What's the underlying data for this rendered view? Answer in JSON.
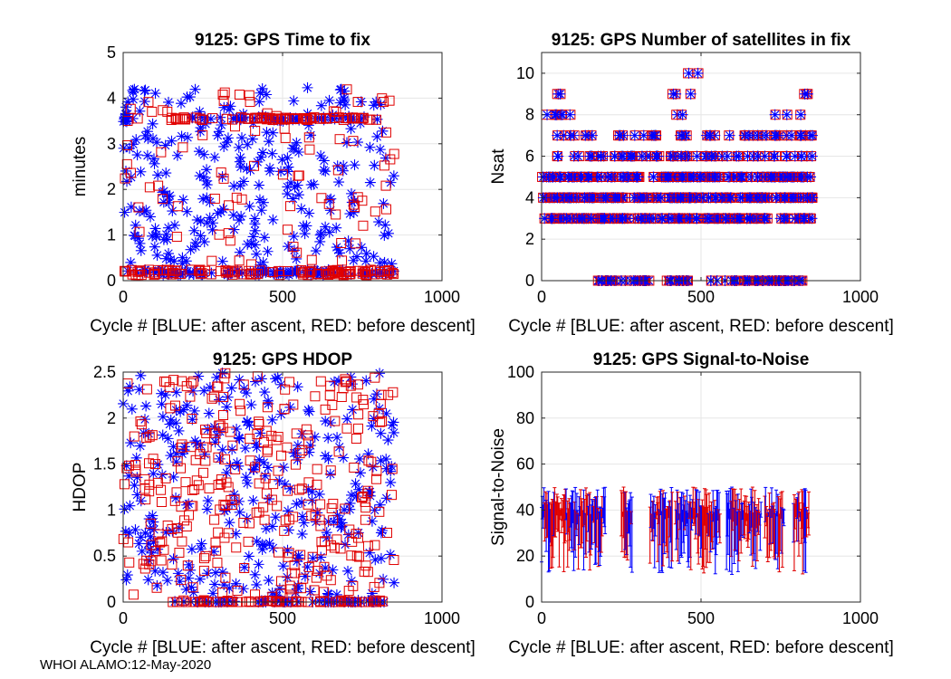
{
  "figure": {
    "footer": "WHOI ALAMO:12-May-2020",
    "colors": {
      "after_ascent": "#0000ff",
      "before_descent": "#e00000",
      "grid": "#e6e6e6",
      "axis": "#262626"
    }
  },
  "chart_data": [
    {
      "id": "time-to-fix",
      "type": "scatter",
      "title": "9125: GPS Time to fix",
      "xlabel": "Cycle #  [BLUE: after ascent, RED: before descent]",
      "ylabel": "minutes",
      "xlim": [
        0,
        1000
      ],
      "ylim": [
        0,
        5
      ],
      "xticks": [
        0,
        500,
        1000
      ],
      "yticks": [
        0,
        1,
        2,
        3,
        4,
        5
      ],
      "x_range": [
        0,
        850
      ],
      "grid": true,
      "series": [
        {
          "name": "after ascent",
          "color": "#0000ff",
          "marker": "star",
          "bands": [
            {
              "y": 0.18,
              "spread": 0.06,
              "n": 110
            },
            {
              "y": 3.55,
              "spread": 0.04,
              "n": 45,
              "xmin": 150,
              "xmax": 800
            },
            {
              "y": 3.6,
              "spread": 0.12,
              "n": 10,
              "xmin": 0,
              "xmax": 15
            }
          ],
          "scatter": {
            "n": 280,
            "ymin": 0.3,
            "ymax": 4.25
          }
        },
        {
          "name": "before descent",
          "color": "#e00000",
          "marker": "square",
          "bands": [
            {
              "y": 0.18,
              "spread": 0.06,
              "n": 110
            },
            {
              "y": 3.55,
              "spread": 0.03,
              "n": 70,
              "xmin": 150,
              "xmax": 800
            }
          ],
          "scatter": {
            "n": 85,
            "ymin": 0.3,
            "ymax": 4.2
          }
        }
      ]
    },
    {
      "id": "num-satellites",
      "type": "scatter",
      "title": "9125: GPS Number of satellites in fix",
      "xlabel": "Cycle #  [BLUE: after ascent, RED: before descent]",
      "ylabel": "Nsat",
      "xlim": [
        0,
        1000
      ],
      "ylim": [
        0,
        11
      ],
      "xticks": [
        0,
        500,
        1000
      ],
      "yticks": [
        0,
        2,
        4,
        6,
        8,
        10
      ],
      "x_range": [
        0,
        850
      ],
      "grid": true,
      "levels": [
        {
          "nsat": 0,
          "segments": [
            [
              150,
              350
            ],
            [
              380,
              460
            ],
            [
              520,
              820
            ]
          ],
          "n": 90
        },
        {
          "nsat": 3,
          "segments": [
            [
              0,
              850
            ]
          ],
          "n": 120
        },
        {
          "nsat": 4,
          "segments": [
            [
              0,
              850
            ]
          ],
          "n": 150
        },
        {
          "nsat": 5,
          "segments": [
            [
              0,
              850
            ]
          ],
          "n": 140
        },
        {
          "nsat": 6,
          "segments": [
            [
              0,
              850
            ]
          ],
          "n": 60
        },
        {
          "nsat": 7,
          "segments": [
            [
              30,
              850
            ]
          ],
          "n": 45
        },
        {
          "nsat": 8,
          "segments": [
            [
              0,
              140
            ],
            [
              330,
              850
            ]
          ],
          "n": 12
        },
        {
          "nsat": 9,
          "segments": [
            [
              40,
              120
            ],
            [
              410,
              500
            ],
            [
              800,
              850
            ]
          ],
          "n": 8
        },
        {
          "nsat": 10,
          "segments": [
            [
              380,
              520
            ]
          ],
          "n": 2
        }
      ],
      "series": [
        {
          "name": "after ascent",
          "color": "#0000ff",
          "marker": "star"
        },
        {
          "name": "before descent",
          "color": "#e00000",
          "marker": "square"
        }
      ]
    },
    {
      "id": "hdop",
      "type": "scatter",
      "title": "9125: GPS HDOP",
      "xlabel": "Cycle #  [BLUE: after ascent, RED: before descent]",
      "ylabel": "HDOP",
      "xlim": [
        0,
        1000
      ],
      "ylim": [
        0,
        2.5
      ],
      "xticks": [
        0,
        500,
        1000
      ],
      "yticks": [
        0,
        0.5,
        1,
        1.5,
        2,
        2.5
      ],
      "x_range": [
        0,
        850
      ],
      "grid": true,
      "series": [
        {
          "name": "after ascent",
          "color": "#0000ff",
          "marker": "star",
          "bands": [
            {
              "y": 0.0,
              "spread": 0.02,
              "n": 60,
              "xmin": 150,
              "xmax": 820
            }
          ],
          "scatter": {
            "n": 320,
            "ymin": 0.05,
            "ymax": 2.5
          }
        },
        {
          "name": "before descent",
          "color": "#e00000",
          "marker": "square",
          "bands": [
            {
              "y": 0.0,
              "spread": 0.02,
              "n": 70,
              "xmin": 150,
              "xmax": 820
            }
          ],
          "scatter": {
            "n": 300,
            "ymin": 0.05,
            "ymax": 2.5
          }
        }
      ]
    },
    {
      "id": "signal-to-noise",
      "type": "errorbar",
      "title": "9125: GPS Signal-to-Noise",
      "xlabel": "Cycle #  [BLUE: after ascent, RED: before descent]",
      "ylabel": "Signal-to-Noise",
      "xlim": [
        0,
        1000
      ],
      "ylim": [
        0,
        100
      ],
      "xticks": [
        0,
        500,
        1000
      ],
      "yticks": [
        0,
        20,
        40,
        60,
        80,
        100
      ],
      "grid": true,
      "segments": [
        [
          0,
          200
        ],
        [
          250,
          285
        ],
        [
          340,
          410
        ],
        [
          420,
          560
        ],
        [
          580,
          690
        ],
        [
          700,
          760
        ],
        [
          790,
          840
        ]
      ],
      "range": {
        "top_min": 38,
        "top_max": 50,
        "bottom_min": 12,
        "bottom_max": 38
      },
      "series": [
        {
          "name": "after ascent",
          "color": "#0000ff"
        },
        {
          "name": "before descent",
          "color": "#e00000"
        }
      ]
    }
  ]
}
